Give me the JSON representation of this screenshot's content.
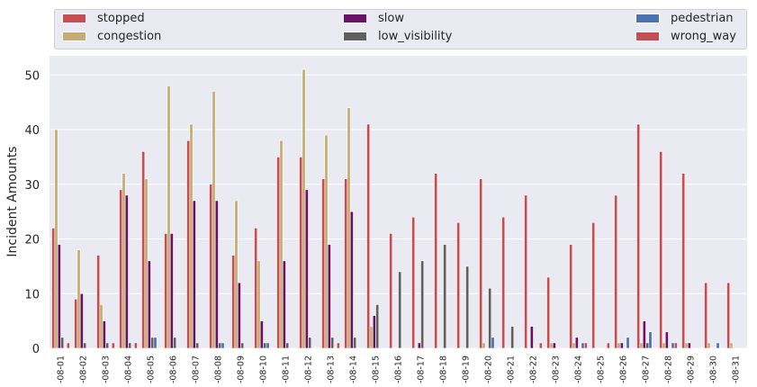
{
  "chart_data": {
    "type": "bar",
    "title": "",
    "xlabel": "",
    "ylabel": "Incident Amounts",
    "ylim": [
      0,
      53.5
    ],
    "yticks": [
      0,
      10,
      20,
      30,
      40,
      50
    ],
    "grid": true,
    "legend_position": "top",
    "categories": [
      "-08-01",
      "-08-02",
      "-08-03",
      "-08-04",
      "-08-05",
      "-08-06",
      "-08-07",
      "-08-08",
      "-08-09",
      "-08-10",
      "-08-11",
      "-08-12",
      "-08-13",
      "-08-14",
      "-08-15",
      "-08-16",
      "-08-17",
      "-08-18",
      "-08-19",
      "-08-20",
      "-08-21",
      "-08-22",
      "-08-23",
      "-08-24",
      "-08-25",
      "-08-26",
      "-08-27",
      "-08-28",
      "-08-29",
      "-08-30",
      "-08-31"
    ],
    "series": [
      {
        "name": "stopped",
        "color": "#c44e52",
        "values": [
          22,
          9,
          17,
          29,
          36,
          21,
          38,
          30,
          17,
          22,
          35,
          35,
          31,
          31,
          41,
          21,
          24,
          32,
          23,
          31,
          24,
          28,
          13,
          19,
          23,
          28,
          41,
          36,
          32,
          12,
          12
        ]
      },
      {
        "name": "congestion",
        "color": "#c4ad72",
        "values": [
          40,
          18,
          8,
          32,
          31,
          48,
          41,
          47,
          27,
          16,
          38,
          51,
          39,
          44,
          4,
          0,
          0,
          0,
          0,
          1,
          0,
          0,
          1,
          1,
          0,
          1,
          1,
          1,
          1,
          1,
          1
        ]
      },
      {
        "name": "slow",
        "color": "#6a1266",
        "values": [
          19,
          10,
          5,
          28,
          16,
          21,
          27,
          27,
          12,
          5,
          16,
          29,
          19,
          25,
          6,
          0,
          1,
          0,
          0,
          0,
          0,
          4,
          1,
          2,
          0,
          1,
          5,
          3,
          1,
          0,
          0
        ]
      },
      {
        "name": "low_visibility",
        "color": "#606060",
        "values": [
          2,
          1,
          1,
          1,
          2,
          2,
          1,
          1,
          1,
          1,
          1,
          2,
          2,
          2,
          8,
          14,
          16,
          19,
          15,
          11,
          4,
          0,
          0,
          0,
          0,
          0,
          1,
          0,
          0,
          0,
          0
        ]
      },
      {
        "name": "pedestrian",
        "color": "#4c72b0",
        "values": [
          0,
          0,
          0,
          0,
          2,
          0,
          0,
          1,
          0,
          1,
          0,
          0,
          0,
          0,
          0,
          0,
          0,
          0,
          0,
          2,
          0,
          0,
          0,
          1,
          0,
          2,
          3,
          1,
          0,
          1,
          0
        ]
      },
      {
        "name": "wrong_way",
        "color": "#c44e52",
        "values": [
          1,
          0,
          1,
          1,
          0,
          0,
          0,
          0,
          0,
          0,
          0,
          0,
          1,
          0,
          0,
          0,
          0,
          0,
          0,
          0,
          0,
          1,
          0,
          1,
          1,
          0,
          0,
          1,
          0,
          0,
          0
        ]
      }
    ]
  }
}
